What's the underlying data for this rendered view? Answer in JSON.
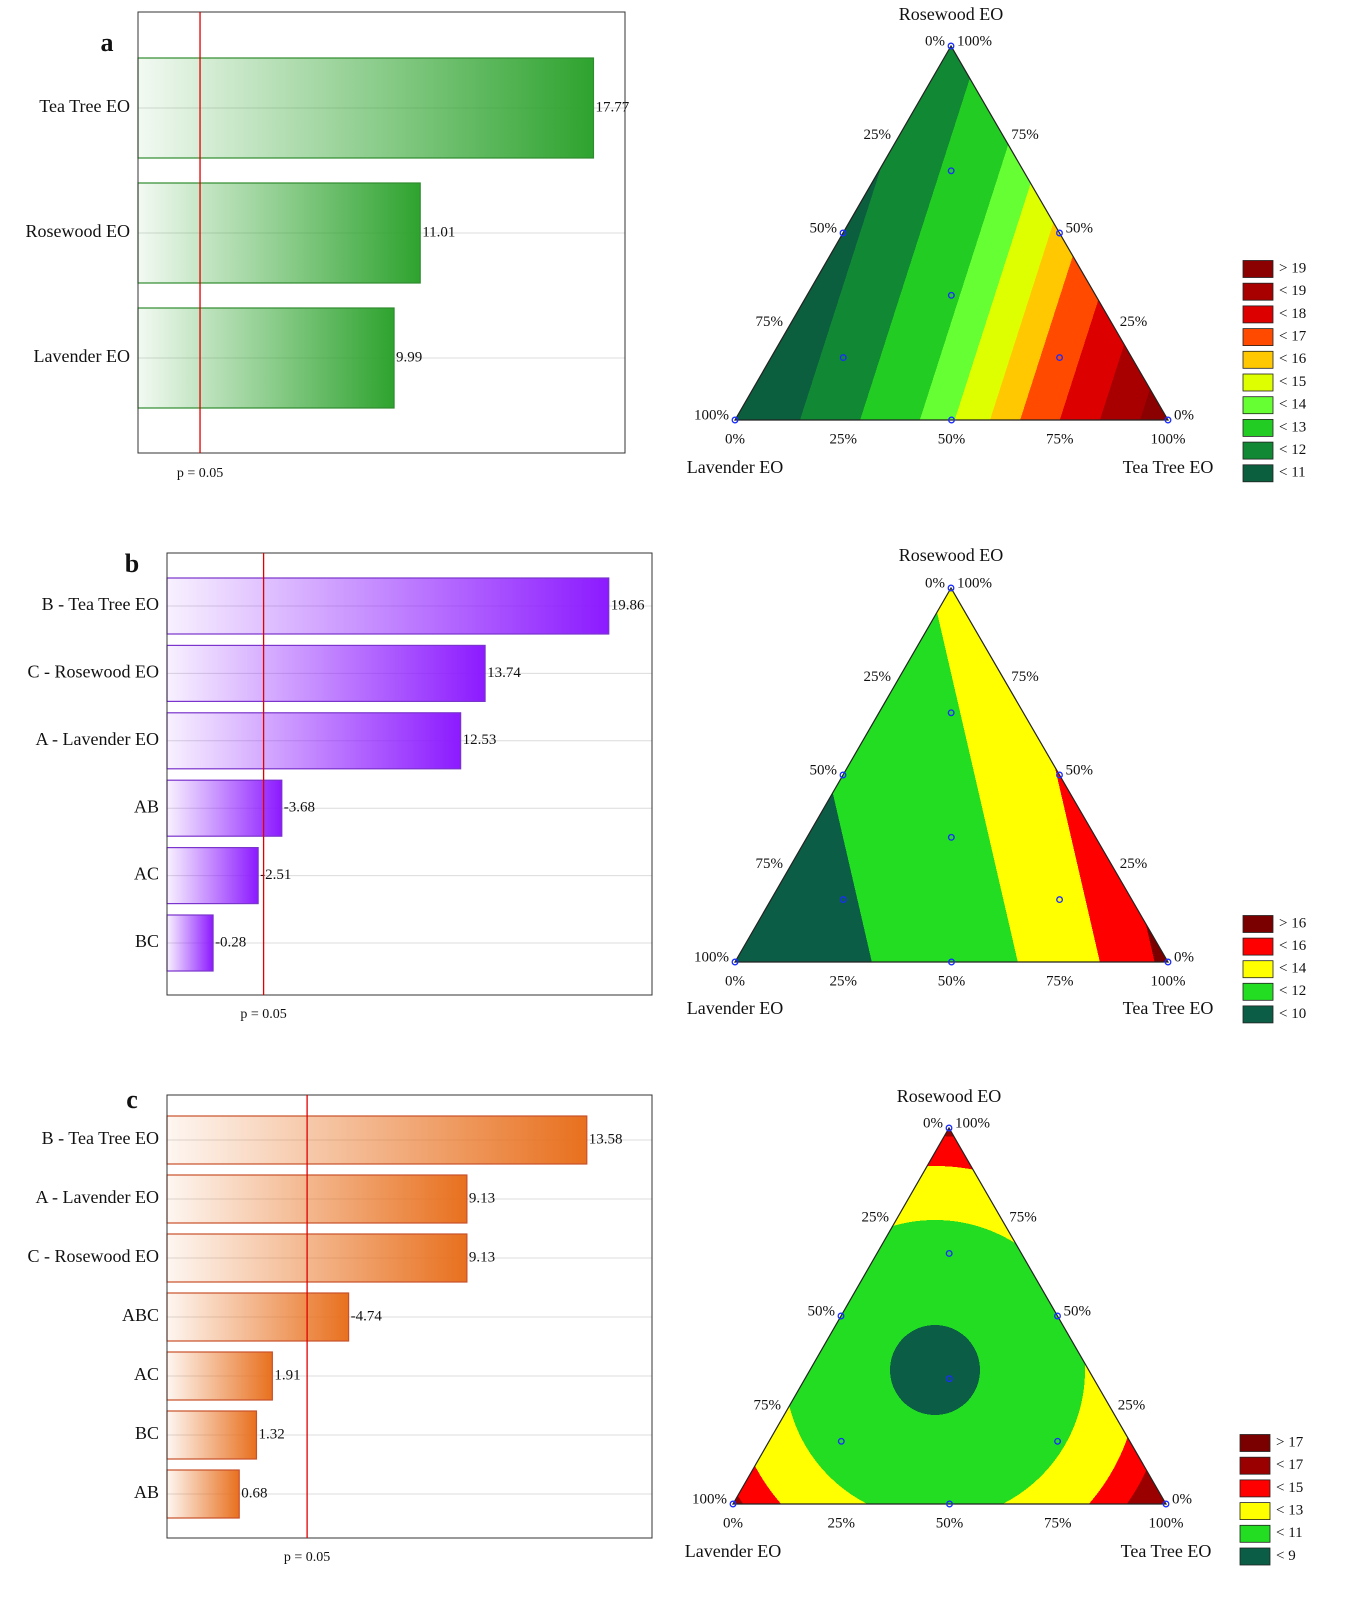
{
  "chart_data": [
    {
      "type": "pareto",
      "panel_label": "a",
      "categories": [
        "Tea Tree EO",
        "Rosewood EO",
        "Lavender EO"
      ],
      "values": [
        17.77,
        11.01,
        9.99
      ],
      "color": "#2ea32e",
      "edge_color": "#2e8b2e",
      "xlim": [
        0,
        19
      ],
      "p_line": {
        "value": 2.42,
        "label": "p = 0.05"
      }
    },
    {
      "type": "ternary",
      "vertex_labels": {
        "top": "Rosewood EO",
        "left": "Lavender EO",
        "right": "Tea Tree EO"
      },
      "ticks": [
        {
          "value": 0,
          "label": "0%"
        },
        {
          "value": 25,
          "label": "25%"
        },
        {
          "value": 50,
          "label": "50%"
        },
        {
          "value": 75,
          "label": "75%"
        },
        {
          "value": 100,
          "label": "100%"
        }
      ],
      "points": [
        [
          100,
          0,
          0
        ],
        [
          0,
          100,
          0
        ],
        [
          0,
          0,
          100
        ],
        [
          50,
          50,
          0
        ],
        [
          50,
          0,
          50
        ],
        [
          0,
          50,
          50
        ],
        [
          33.3,
          33.3,
          33.3
        ],
        [
          66.7,
          16.7,
          16.7
        ],
        [
          16.7,
          66.7,
          16.7
        ],
        [
          16.7,
          16.7,
          66.7
        ]
      ],
      "legend": {
        "labels": [
          "> 19",
          "< 19",
          "< 18",
          "< 17",
          "< 16",
          "< 15",
          "< 14",
          "< 13",
          "< 12",
          "< 11"
        ],
        "colors": [
          "#8b0000",
          "#a80000",
          "#dd0000",
          "#ff4a00",
          "#ffc800",
          "#ddff00",
          "#66ff33",
          "#22cc22",
          "#118833",
          "#0b5e3e"
        ]
      }
    },
    {
      "type": "pareto",
      "panel_label": "b",
      "categories": [
        "B - Tea Tree EO",
        "C - Rosewood EO",
        "A - Lavender EO",
        "AB",
        "AC",
        "BC"
      ],
      "values": [
        19.86,
        13.74,
        12.53,
        -3.68,
        -2.51,
        -0.28
      ],
      "color": "#8c1aff",
      "edge_color": "#7a33cc",
      "xlim": [
        -2,
        22
      ],
      "p_line": {
        "value": 2.78,
        "label": "p = 0.05"
      }
    },
    {
      "type": "ternary",
      "vertex_labels": {
        "top": "Rosewood EO",
        "left": "Lavender EO",
        "right": "Tea Tree EO"
      },
      "ticks": [
        {
          "value": 0,
          "label": "0%"
        },
        {
          "value": 25,
          "label": "25%"
        },
        {
          "value": 50,
          "label": "50%"
        },
        {
          "value": 75,
          "label": "75%"
        },
        {
          "value": 100,
          "label": "100%"
        }
      ],
      "points": [
        [
          100,
          0,
          0
        ],
        [
          0,
          100,
          0
        ],
        [
          0,
          0,
          100
        ],
        [
          50,
          50,
          0
        ],
        [
          50,
          0,
          50
        ],
        [
          0,
          50,
          50
        ],
        [
          33.3,
          33.3,
          33.3
        ],
        [
          66.7,
          16.7,
          16.7
        ],
        [
          16.7,
          66.7,
          16.7
        ],
        [
          16.7,
          16.7,
          66.7
        ]
      ],
      "legend": {
        "labels": [
          "> 16",
          "< 16",
          "< 14",
          "< 12",
          "< 10"
        ],
        "colors": [
          "#7a0000",
          "#ff0000",
          "#ffff00",
          "#22dd22",
          "#0b5e45"
        ]
      }
    },
    {
      "type": "pareto",
      "panel_label": "c",
      "categories": [
        "B - Tea Tree EO",
        "A - Lavender EO",
        "C - Rosewood EO",
        "ABC",
        "AC",
        "BC",
        "AB"
      ],
      "values": [
        13.58,
        9.13,
        9.13,
        -4.74,
        1.91,
        1.32,
        0.68
      ],
      "color": "#e8701e",
      "edge_color": "#c9502a",
      "xlim": [
        -2,
        16
      ],
      "p_line": {
        "value": 3.2,
        "label": "p = 0.05"
      }
    },
    {
      "type": "ternary",
      "vertex_labels": {
        "top": "Rosewood EO",
        "left": "Lavender EO",
        "right": "Tea Tree EO"
      },
      "ticks": [
        {
          "value": 0,
          "label": "0%"
        },
        {
          "value": 25,
          "label": "25%"
        },
        {
          "value": 50,
          "label": "50%"
        },
        {
          "value": 75,
          "label": "75%"
        },
        {
          "value": 100,
          "label": "100%"
        }
      ],
      "points": [
        [
          100,
          0,
          0
        ],
        [
          0,
          100,
          0
        ],
        [
          0,
          0,
          100
        ],
        [
          50,
          50,
          0
        ],
        [
          50,
          0,
          50
        ],
        [
          0,
          50,
          50
        ],
        [
          33.3,
          33.3,
          33.3
        ],
        [
          66.7,
          16.7,
          16.7
        ],
        [
          16.7,
          66.7,
          16.7
        ],
        [
          16.7,
          16.7,
          66.7
        ]
      ],
      "legend": {
        "labels": [
          "> 17",
          "< 17",
          "< 15",
          "< 13",
          "< 11",
          "< 9"
        ],
        "colors": [
          "#7a0000",
          "#9b0000",
          "#ff0000",
          "#ffff00",
          "#22dd22",
          "#0b5e45"
        ]
      }
    }
  ]
}
